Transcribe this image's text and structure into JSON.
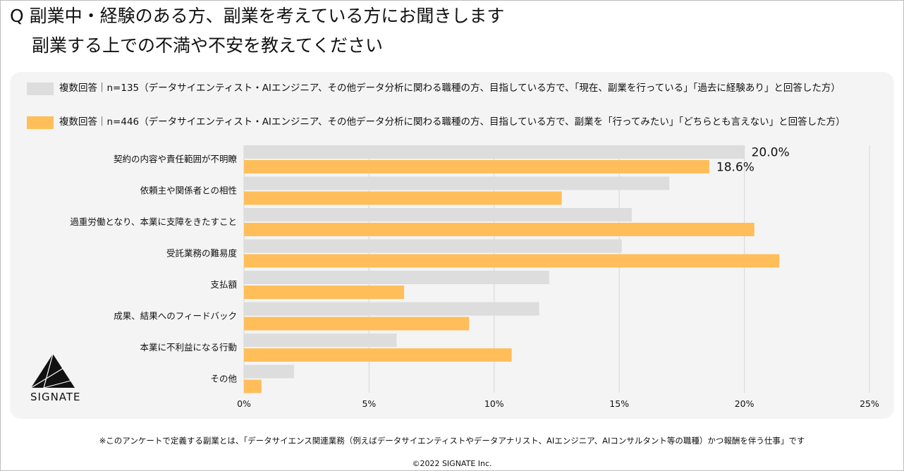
{
  "title": {
    "line1": "Q 副業中・経験のある方、副業を考えている方にお聞きします",
    "line2": "副業する上での不満や不安を教えてください"
  },
  "legend": [
    {
      "text": "複数回答｜n=135（データサイエンティスト・AIエンジニア、その他データ分析に関わる職種の方、目指している方で、「現在、副業を行っている」「過去に経験あり」と回答した方）",
      "color": "#dddddd"
    },
    {
      "text": "複数回答｜n=446（データサイエンティスト・AIエンジニア、その他データ分析に関わる職種の方、目指している方で、副業を「行ってみたい」「どちらとも言えない」と回答した方）",
      "color": "#ffbe5a"
    }
  ],
  "logo": {
    "text": "SIGNATE"
  },
  "footnote": "※このアンケートで定義する副業とは、「データサイエンス関連業務（例えばデータサイエンティストやデータアナリスト、AIエンジニア、AIコンサルタント等の職種）かつ報酬を伴う仕事」です",
  "copyright": "©2022 SIGNATE Inc.",
  "chart_data": {
    "type": "bar",
    "orientation": "horizontal",
    "categories": [
      "契約の内容や責任範囲が不明瞭",
      "依頼主や関係者との相性",
      "過重労働となり、本業に支障をきたすこと",
      "受託業務の難易度",
      "支払額",
      "成果、結果へのフィードバック",
      "本業に不利益になる行動",
      "その他"
    ],
    "series": [
      {
        "name": "n=135",
        "color": "#dddddd",
        "values": [
          20.0,
          17.0,
          15.5,
          15.1,
          12.2,
          11.8,
          6.1,
          2.0
        ]
      },
      {
        "name": "n=446",
        "color": "#ffbe5a",
        "values": [
          18.6,
          12.7,
          20.4,
          21.4,
          6.4,
          9.0,
          10.7,
          0.7
        ]
      }
    ],
    "data_labels": [
      "20.0%",
      "18.6%"
    ],
    "xlim": [
      0,
      25
    ],
    "xticks": [
      0,
      5,
      10,
      15,
      20,
      25
    ],
    "tick_labels": [
      "0%",
      "5%",
      "10%",
      "15%",
      "20%",
      "25%"
    ],
    "grid": true
  }
}
